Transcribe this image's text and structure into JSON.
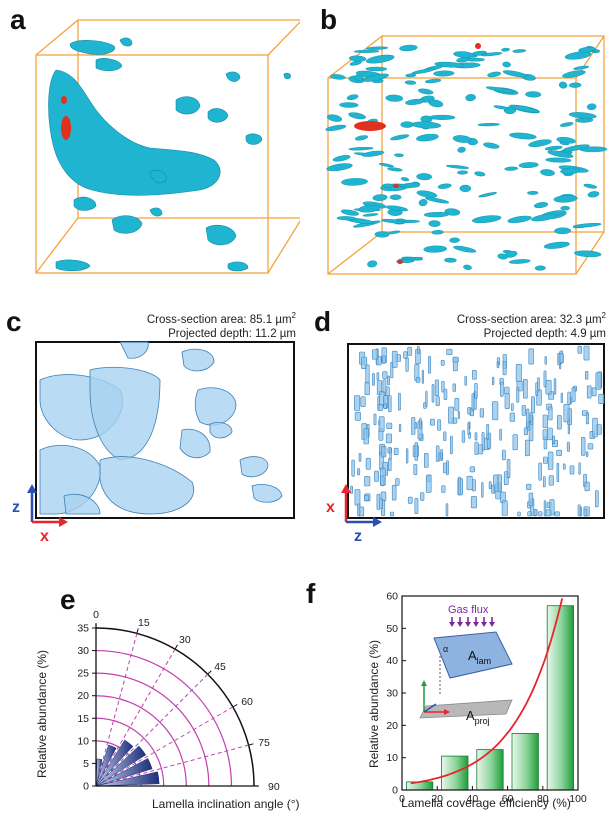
{
  "panels": {
    "a": {
      "label": "a"
    },
    "b": {
      "label": "b"
    },
    "c": {
      "label": "c",
      "area": "Cross-section area: 85.1 µm",
      "area_sup": "2",
      "depth": "Projected depth: 11.2 µm",
      "axis_vertical": "z",
      "axis_horizontal": "x"
    },
    "d": {
      "label": "d",
      "area": "Cross-section area: 32.3 µm",
      "area_sup": "2",
      "depth": "Projected depth: 4.9 µm",
      "axis_vertical": "x",
      "axis_horizontal": "z"
    },
    "e": {
      "label": "e"
    },
    "f": {
      "label": "f"
    }
  },
  "colors": {
    "cube_edge": "#f4a340",
    "pore_cyan": "#1fb5d0",
    "pore_red": "#e0301e",
    "render_blue": "#6fb7e3",
    "axis_red": "#e8252b",
    "axis_blue": "#2a4fb5",
    "polar_grid": "#c13fb0",
    "polar_bar_dark": "#1c2f7a",
    "polar_bar_light": "#c9d6f2",
    "bar_green": "#1f9e3a",
    "fit_red": "#e8252b",
    "gas_flux": "#7a2a9c"
  },
  "chart_data": [
    {
      "id": "e",
      "type": "bar",
      "subtype": "polar-quadrant",
      "title": "",
      "xlabel": "Lamella inclination angle (°)",
      "ylabel": "Relative abundance (%)",
      "angle_range": [
        0,
        90
      ],
      "angle_ticks": [
        "0",
        "15",
        "30",
        "45",
        "60",
        "75",
        "90"
      ],
      "radial_range": [
        0,
        35
      ],
      "radial_ticks": [
        "0",
        "5",
        "10",
        "15",
        "20",
        "25",
        "30",
        "35"
      ],
      "categories": [
        "0-15",
        "15-30",
        "30-45",
        "45-60",
        "60-75",
        "75-90"
      ],
      "values": [
        6,
        9.5,
        12,
        13,
        13,
        14
      ]
    },
    {
      "id": "f",
      "type": "bar",
      "title": "",
      "xlabel": "Lamella coverage efficiency (%)",
      "ylabel": "Relative abundance (%)",
      "xlim": [
        0,
        100
      ],
      "ylim": [
        0,
        60
      ],
      "x_ticks": [
        "0",
        "20",
        "40",
        "60",
        "80",
        "100"
      ],
      "y_ticks": [
        "0",
        "10",
        "20",
        "30",
        "40",
        "50",
        "60"
      ],
      "categories": [
        "0-20",
        "20-40",
        "40-60",
        "60-80",
        "80-100"
      ],
      "x": [
        10,
        30,
        50,
        70,
        90
      ],
      "values": [
        2.5,
        10.5,
        12.5,
        17.5,
        57
      ],
      "fit": {
        "type": "exponential"
      },
      "inset": {
        "gas_flux": "Gas flux",
        "a_lam": "A",
        "a_lam_sub": "lam",
        "a_proj": "A",
        "a_proj_sub": "proj",
        "alpha": "α"
      }
    }
  ]
}
